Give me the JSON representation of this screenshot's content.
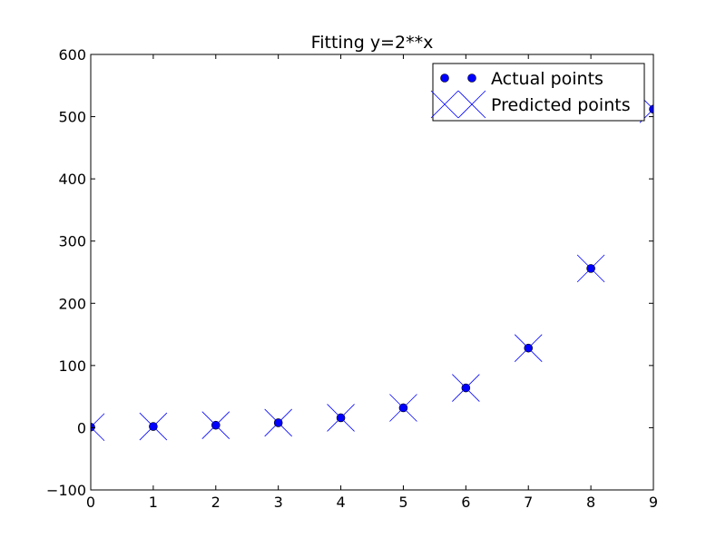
{
  "chart_data": {
    "type": "scatter",
    "title": "Fitting y=2**x",
    "xlabel": "",
    "ylabel": "",
    "xlim": [
      0,
      9
    ],
    "ylim": [
      -100,
      600
    ],
    "xticks": [
      0,
      1,
      2,
      3,
      4,
      5,
      6,
      7,
      8,
      9
    ],
    "yticks": [
      -100,
      0,
      100,
      200,
      300,
      400,
      500,
      600
    ],
    "xtick_labels": [
      "0",
      "1",
      "2",
      "3",
      "4",
      "5",
      "6",
      "7",
      "8",
      "9"
    ],
    "ytick_labels": [
      "−100",
      "0",
      "100",
      "200",
      "300",
      "400",
      "500",
      "600"
    ],
    "grid": false,
    "legend_position": "top-right",
    "series": [
      {
        "name": "Actual points",
        "marker": "circle",
        "color": "#0000ff",
        "x": [
          0,
          1,
          2,
          3,
          4,
          5,
          6,
          7,
          8,
          9
        ],
        "y": [
          1,
          2,
          4,
          8,
          16,
          32,
          64,
          128,
          256,
          512
        ]
      },
      {
        "name": "Predicted points",
        "marker": "x",
        "color": "#0000ff",
        "x": [
          0,
          1,
          2,
          3,
          4,
          5,
          6,
          7,
          8,
          9
        ],
        "y": [
          1,
          2,
          4,
          8,
          16,
          32,
          64,
          128,
          256,
          512
        ]
      }
    ]
  }
}
